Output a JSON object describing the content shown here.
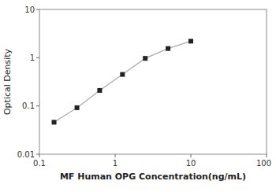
{
  "chart_data": {
    "type": "line",
    "xlabel": "MF Human OPG Concentration(ng/mL)",
    "ylabel": "Optical Density",
    "x": [
      0.156,
      0.313,
      0.625,
      1.25,
      2.5,
      5.0,
      10.0
    ],
    "series": [
      {
        "color": "#aaaaaa",
        "marker": "square",
        "values": [
          0.046,
          0.092,
          0.21,
          0.45,
          0.97,
          1.55,
          2.2
        ]
      }
    ],
    "xlim": [
      0.1,
      100
    ],
    "ylim": [
      0.01,
      10
    ],
    "xticks": [
      0.1,
      1,
      10,
      100
    ],
    "yticks": [
      0.01,
      0.1,
      1,
      10
    ],
    "log": true,
    "grid": false
  }
}
